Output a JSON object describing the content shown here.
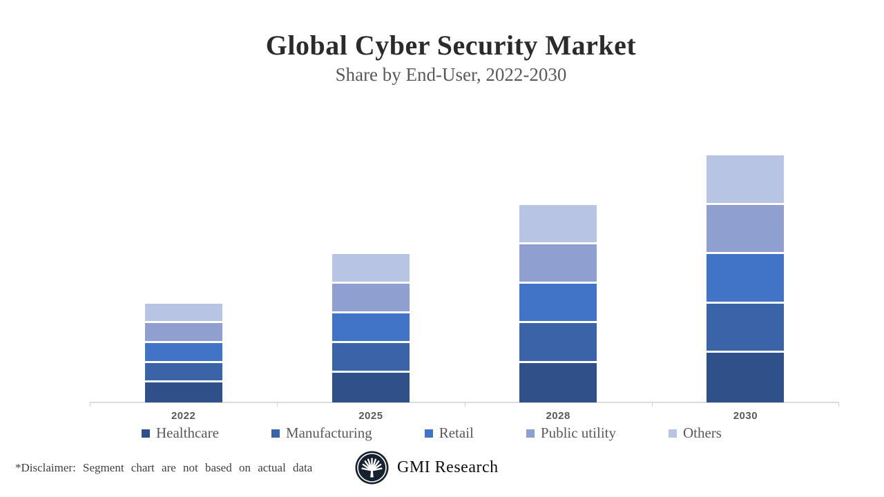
{
  "header": {
    "title": "Global Cyber Security Market",
    "subtitle": "Share by End-User, 2022-2030"
  },
  "chart_data": {
    "type": "bar",
    "stacked": true,
    "title": "Global Cyber Security Market",
    "subtitle": "Share by End-User, 2022-2030",
    "categories": [
      "2022",
      "2025",
      "2028",
      "2030"
    ],
    "series": [
      {
        "name": "Healthcare",
        "color": "#2F5088",
        "values": [
          4,
          6,
          8,
          10
        ]
      },
      {
        "name": "Manufacturing",
        "color": "#3A63A8",
        "values": [
          4,
          6,
          8,
          10
        ]
      },
      {
        "name": "Retail",
        "color": "#4173C6",
        "values": [
          4,
          6,
          8,
          10
        ]
      },
      {
        "name": "Public utility",
        "color": "#8FA0D0",
        "values": [
          4,
          6,
          8,
          10
        ]
      },
      {
        "name": "Others",
        "color": "#B8C4E4",
        "values": [
          4,
          6,
          8,
          10
        ]
      }
    ],
    "values_note": "relative units estimated from pixel heights; segments are equal fifths of each bar (illustrative data per disclaimer)",
    "bar_totals": [
      20,
      30,
      40,
      50
    ],
    "xlabel": "",
    "ylabel": "",
    "y_axis_visible": false,
    "gridlines": false,
    "legend_position": "bottom",
    "axis_color": "#DCDCDC",
    "label_color": "#595959"
  },
  "footer": {
    "disclaimer": "*Disclaimer: Segment chart are not based on actual data",
    "brand": "GMI Research",
    "logo_icon": "palm-fan-emblem",
    "logo_bg": "#16222E"
  }
}
